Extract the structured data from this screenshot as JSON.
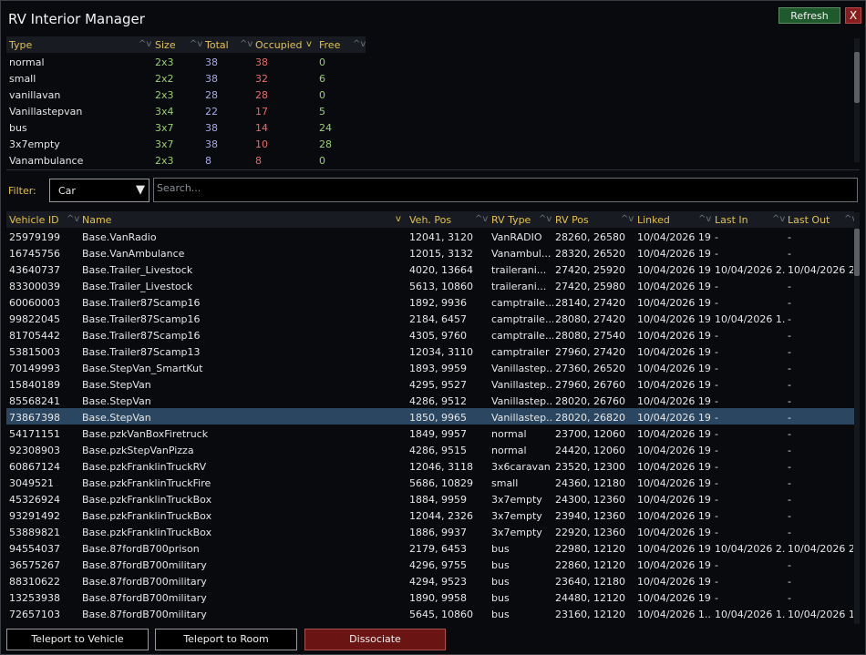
{
  "window": {
    "title": "RV Interior Manager"
  },
  "toolbar": {
    "refresh_label": "Refresh",
    "close_label": "X"
  },
  "summary": {
    "columns": [
      {
        "label": "Type",
        "sort": "^v"
      },
      {
        "label": "Size",
        "sort": "^v"
      },
      {
        "label": "Total",
        "sort": "^v"
      },
      {
        "label": "Occupied",
        "sort": "v"
      },
      {
        "label": "Free",
        "sort": "^v"
      }
    ],
    "rows": [
      [
        "normal",
        "2x3",
        "38",
        "38",
        "0"
      ],
      [
        "small",
        "2x2",
        "38",
        "32",
        "6"
      ],
      [
        "vanillavan",
        "2x3",
        "28",
        "28",
        "0"
      ],
      [
        "Vanillastepvan",
        "3x4",
        "22",
        "17",
        "5"
      ],
      [
        "bus",
        "3x7",
        "38",
        "14",
        "24"
      ],
      [
        "3x7empty",
        "3x7",
        "38",
        "10",
        "28"
      ],
      [
        "Vanambulance",
        "2x3",
        "8",
        "8",
        "0"
      ]
    ],
    "colors": {
      "type": "#e6e6e6",
      "size": "#9ad06c",
      "total": "#a9a9e6",
      "occupied": "#e86a6a",
      "free": "#9ad06c"
    }
  },
  "filter": {
    "label": "Filter:",
    "selected": "Car",
    "search_placeholder": "Search..."
  },
  "vehicles": {
    "columns": [
      {
        "label": "Vehicle ID",
        "sort": "^v"
      },
      {
        "label": "Name",
        "sort": "v"
      },
      {
        "label": "Veh. Pos",
        "sort": "^v"
      },
      {
        "label": "RV Type",
        "sort": "^v"
      },
      {
        "label": "RV Pos",
        "sort": "^v"
      },
      {
        "label": "Linked",
        "sort": "^v"
      },
      {
        "label": "Last In",
        "sort": "^v"
      },
      {
        "label": "Last Out",
        "sort": "^v"
      }
    ],
    "selected_index": 11,
    "rows": [
      [
        "25979199",
        "Base.VanRadio",
        "12041, 3120",
        "VanRADIO",
        "28260, 26580",
        "10/04/2026 19...",
        "-",
        "-"
      ],
      [
        "16745756",
        "Base.VanAmbulance",
        "12015, 3132",
        "Vanambul...",
        "28320, 26520",
        "10/04/2026 19...",
        "-",
        "-"
      ],
      [
        "43640737",
        "Base.Trailer_Livestock",
        "4020, 13664",
        "trailerani...",
        "27420, 25920",
        "10/04/2026 19...",
        "10/04/2026 2...",
        "10/04/2026 2..."
      ],
      [
        "83300039",
        "Base.Trailer_Livestock",
        "5613, 10860",
        "trailerani...",
        "27420, 25980",
        "10/04/2026 19...",
        "-",
        "-"
      ],
      [
        "60060003",
        "Base.Trailer87Scamp16",
        "1892, 9936",
        "camptraile...",
        "28140, 27420",
        "10/04/2026 19...",
        "-",
        "-"
      ],
      [
        "99822045",
        "Base.Trailer87Scamp16",
        "2184, 6457",
        "camptraile...",
        "28080, 27420",
        "10/04/2026 19...",
        "10/04/2026 1...",
        "-"
      ],
      [
        "81705442",
        "Base.Trailer87Scamp16",
        "4305, 9760",
        "camptraile...",
        "28080, 27540",
        "10/04/2026 19...",
        "-",
        "-"
      ],
      [
        "53815003",
        "Base.Trailer87Scamp13",
        "12034, 3110",
        "camptrailer",
        "27960, 27420",
        "10/04/2026 19...",
        "-",
        "-"
      ],
      [
        "70149993",
        "Base.StepVan_SmartKut",
        "1893, 9959",
        "Vanillastep...",
        "27360, 26520",
        "10/04/2026 19...",
        "-",
        "-"
      ],
      [
        "15840189",
        "Base.StepVan",
        "4295, 9527",
        "Vanillastep...",
        "27960, 26760",
        "10/04/2026 19...",
        "-",
        "-"
      ],
      [
        "85568241",
        "Base.StepVan",
        "4286, 9512",
        "Vanillastep...",
        "28020, 26760",
        "10/04/2026 19...",
        "-",
        "-"
      ],
      [
        "73867398",
        "Base.StepVan",
        "1850, 9965",
        "Vanillastep...",
        "28020, 26820",
        "10/04/2026 19...",
        "-",
        "-"
      ],
      [
        "54171151",
        "Base.pzkVanBoxFiretruck",
        "1849, 9957",
        "normal",
        "23700, 12060",
        "10/04/2026 19...",
        "-",
        "-"
      ],
      [
        "92308903",
        "Base.pzkStepVanPizza",
        "4286, 9515",
        "normal",
        "24420, 12060",
        "10/04/2026 19...",
        "-",
        "-"
      ],
      [
        "60867124",
        "Base.pzkFranklinTruckRV",
        "12046, 3118",
        "3x6caravan",
        "23520, 12300",
        "10/04/2026 19...",
        "-",
        "-"
      ],
      [
        "3049521",
        "Base.pzkFranklinTruckFire",
        "5686, 10829",
        "small",
        "24360, 12180",
        "10/04/2026 19...",
        "-",
        "-"
      ],
      [
        "45326924",
        "Base.pzkFranklinTruckBox",
        "1884, 9959",
        "3x7empty",
        "24300, 12360",
        "10/04/2026 19...",
        "-",
        "-"
      ],
      [
        "93291492",
        "Base.pzkFranklinTruckBox",
        "12044, 2326",
        "3x7empty",
        "23940, 12360",
        "10/04/2026 19...",
        "-",
        "-"
      ],
      [
        "53889821",
        "Base.pzkFranklinTruckBox",
        "1886, 9937",
        "3x7empty",
        "22920, 12360",
        "10/04/2026 19...",
        "-",
        "-"
      ],
      [
        "94554037",
        "Base.87fordB700prison",
        "2179, 6453",
        "bus",
        "22980, 12120",
        "10/04/2026 19...",
        "10/04/2026 2...",
        "10/04/2026 2..."
      ],
      [
        "36575267",
        "Base.87fordB700military",
        "4296, 9755",
        "bus",
        "22860, 12120",
        "10/04/2026 19...",
        "-",
        "-"
      ],
      [
        "88310622",
        "Base.87fordB700military",
        "4294, 9523",
        "bus",
        "23640, 12180",
        "10/04/2026 19...",
        "-",
        "-"
      ],
      [
        "13253938",
        "Base.87fordB700military",
        "1890, 9958",
        "bus",
        "24480, 12120",
        "10/04/2026 19...",
        "-",
        "-"
      ],
      [
        "72657103",
        "Base.87fordB700military",
        "5645, 10860",
        "bus",
        "23160, 12120",
        "10/04/2026 1...",
        "10/04/2026 1...",
        "10/04/2026 1..."
      ]
    ]
  },
  "actions": {
    "teleport_vehicle": "Teleport to Vehicle",
    "teleport_room": "Teleport to Room",
    "dissociate": "Dissociate"
  }
}
